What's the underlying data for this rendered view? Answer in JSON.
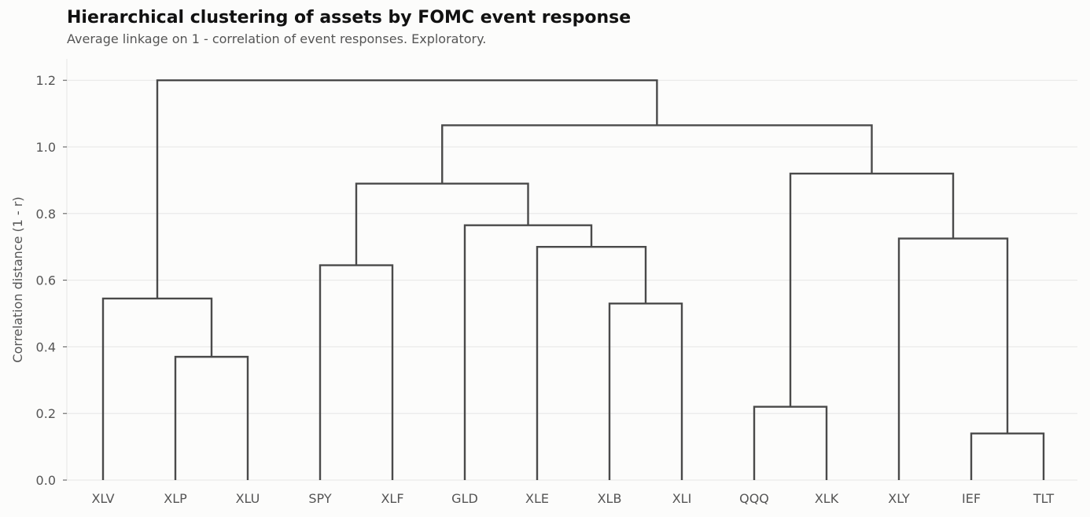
{
  "chart_data": {
    "type": "dendrogram",
    "title": "Hierarchical clustering of assets by FOMC event response",
    "subtitle": "Average linkage on 1 - correlation of event responses. Exploratory.",
    "ylabel": "Correlation distance (1 - r)",
    "xlabel": "",
    "ylim": [
      0,
      1.26
    ],
    "yticks": [
      0.0,
      0.2,
      0.4,
      0.6,
      0.8,
      1.0,
      1.2
    ],
    "ytick_labels": [
      "0.0",
      "0.2",
      "0.4",
      "0.6",
      "0.8",
      "1.0",
      "1.2"
    ],
    "grid": "horizontal",
    "leaves": [
      "XLV",
      "XLP",
      "XLU",
      "SPY",
      "XLF",
      "GLD",
      "XLE",
      "XLB",
      "XLI",
      "QQQ",
      "XLK",
      "XLY",
      "IEF",
      "TLT"
    ],
    "merges": [
      {
        "left": "IEF",
        "right": "TLT",
        "height": 0.14
      },
      {
        "left": "QQQ",
        "right": "XLK",
        "height": 0.22
      },
      {
        "left": "XLP",
        "right": "XLU",
        "height": 0.37
      },
      {
        "left": "XLB",
        "right": "XLI",
        "height": 0.53
      },
      {
        "left": "XLV",
        "right": "XLP+XLU",
        "height": 0.545
      },
      {
        "left": "SPY",
        "right": "XLF",
        "height": 0.645
      },
      {
        "left": "XLE",
        "right": "XLB+XLI",
        "height": 0.7
      },
      {
        "left": "XLY",
        "right": "IEF+TLT",
        "height": 0.725
      },
      {
        "left": "GLD",
        "right": "XLE+XLB+XLI",
        "height": 0.765
      },
      {
        "left": "SPY+XLF",
        "right": "GLD+XLE+XLB+XLI",
        "height": 0.89
      },
      {
        "left": "QQQ+XLK",
        "right": "XLY+IEF+TLT",
        "height": 0.92
      },
      {
        "left": "SPY..XLI",
        "right": "QQQ..TLT",
        "height": 1.065
      },
      {
        "left": "XLV+XLP+XLU",
        "right": "SPY..TLT",
        "height": 1.2
      }
    ]
  },
  "colors": {
    "line": "#4a4a4a",
    "grid": "#e6e6e6",
    "axis_text": "#555555",
    "background": "#fcfcfb"
  }
}
